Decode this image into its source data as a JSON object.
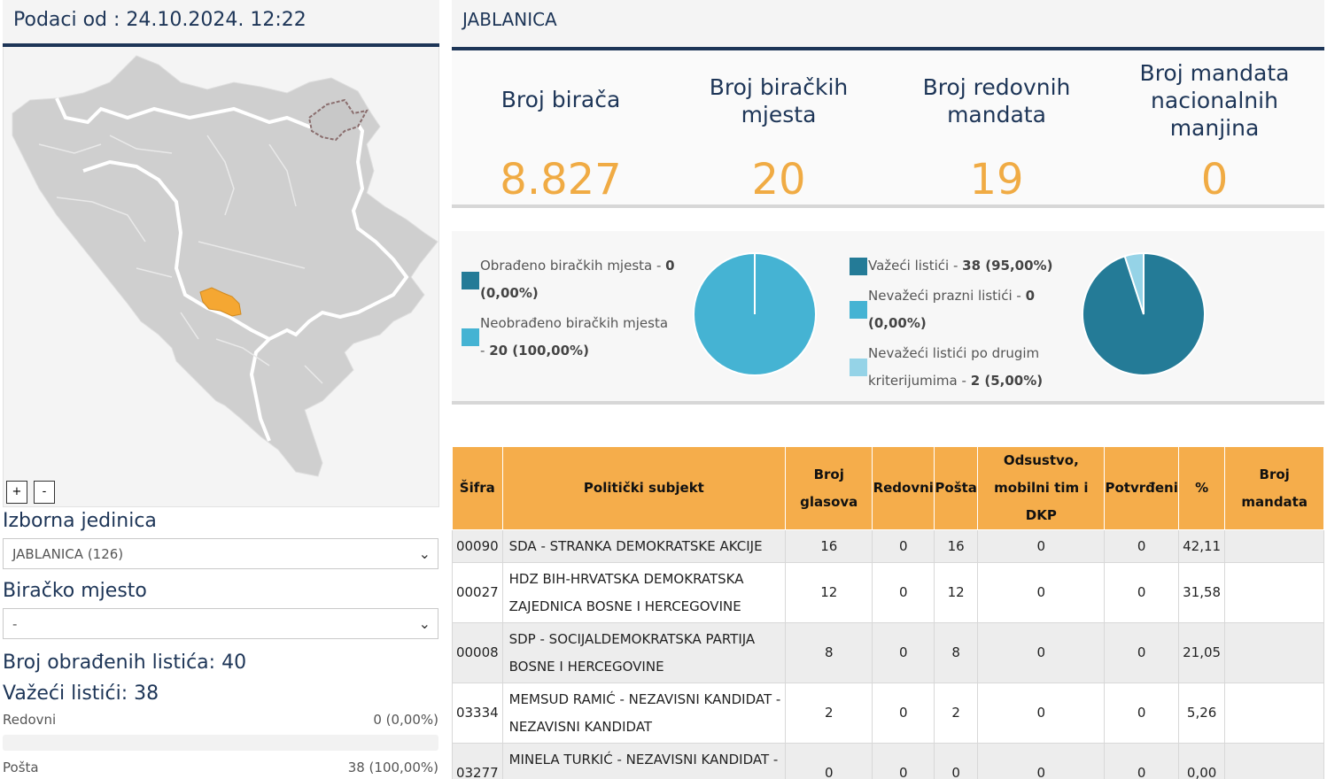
{
  "header": {
    "data_time": "Podaci od : 24.10.2024. 12:22"
  },
  "map": {
    "zoom_in": "+",
    "zoom_out": "-",
    "highlight_color": "#f5a732"
  },
  "filters": {
    "constituency_label": "Izborna jedinica",
    "constituency_value": "JABLANICA (126)",
    "polling_label": "Biračko mjesto",
    "polling_value": "-"
  },
  "stats": {
    "processed": "Broj obrađenih listića: 40",
    "valid": "Važeći listići: 38",
    "regular_label": "Redovni",
    "regular_value": "0 (0,00%)",
    "mail_label": "Pošta",
    "mail_value": "38 (100,00%)"
  },
  "municipality": {
    "name": "JABLANICA",
    "kpis": [
      {
        "title": "Broj birača",
        "value": "8.827"
      },
      {
        "title": "Broj biračkih mjesta",
        "value": "20"
      },
      {
        "title": "Broj redovnih mandata",
        "value": "19"
      },
      {
        "title": "Broj mandata nacionalnih manjina",
        "value": "0"
      }
    ]
  },
  "polling_places_chart": {
    "legend": [
      {
        "label": "Obrađeno biračkih mjesta -",
        "value": "0 (0,00%)",
        "color": "#247b97"
      },
      {
        "label": "Neobrađeno biračkih mjesta -",
        "value": "20 (100,00%)",
        "color": "#45b3d3"
      }
    ],
    "values": [
      0,
      100
    ]
  },
  "ballots_chart": {
    "legend": [
      {
        "label": "Važeći listići -",
        "value": "38 (95,00%)",
        "color": "#247b97"
      },
      {
        "label": "Nevažeći prazni listići -",
        "value": "0 (0,00%)",
        "color": "#45b3d3"
      },
      {
        "label": "Nevažeći listići po drugim kriterijumima -",
        "value": "2 (5,00%)",
        "color": "#95d3e7"
      }
    ],
    "values": [
      95,
      0,
      5
    ]
  },
  "table": {
    "headers": [
      "Šifra",
      "Politički subjekt",
      "Broj glasova",
      "Redovni",
      "Pošta",
      "Odsustvo, mobilni tim i DKP",
      "Potvrđeni",
      "%",
      "Broj mandata"
    ],
    "rows": [
      {
        "code": "00090",
        "party": "SDA - STRANKA DEMOKRATSKE AKCIJE",
        "votes": "16",
        "regular": "0",
        "mail": "16",
        "absent": "0",
        "confirmed": "0",
        "pct": "42,11",
        "mandates": ""
      },
      {
        "code": "00027",
        "party": "HDZ BIH-HRVATSKA DEMOKRATSKA ZAJEDNICA BOSNE I HERCEGOVINE",
        "votes": "12",
        "regular": "0",
        "mail": "12",
        "absent": "0",
        "confirmed": "0",
        "pct": "31,58",
        "mandates": ""
      },
      {
        "code": "00008",
        "party": "SDP - SOCIJALDEMOKRATSKA PARTIJA BOSNE I HERCEGOVINE",
        "votes": "8",
        "regular": "0",
        "mail": "8",
        "absent": "0",
        "confirmed": "0",
        "pct": "21,05",
        "mandates": ""
      },
      {
        "code": "03334",
        "party": "MEMSUD RAMIĆ - NEZAVISNI KANDIDAT - NEZAVISNI KANDIDAT",
        "votes": "2",
        "regular": "0",
        "mail": "2",
        "absent": "0",
        "confirmed": "0",
        "pct": "5,26",
        "mandates": ""
      },
      {
        "code": "03277",
        "party": "MINELA TURKIĆ - NEZAVISNI KANDIDAT - NEZAVISNI KANDIDAT",
        "votes": "0",
        "regular": "0",
        "mail": "0",
        "absent": "0",
        "confirmed": "0",
        "pct": "0,00",
        "mandates": ""
      }
    ]
  }
}
